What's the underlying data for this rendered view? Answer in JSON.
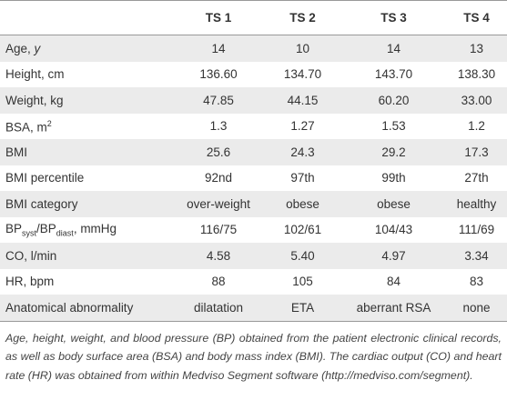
{
  "table": {
    "header": [
      "TS 1",
      "TS 2",
      "TS 3",
      "TS 4"
    ],
    "rows": [
      {
        "label": [
          {
            "text": "Age, "
          },
          {
            "text": "y",
            "style": "italic"
          }
        ],
        "cells": [
          "14",
          "10",
          "14",
          "13"
        ]
      },
      {
        "label": [
          {
            "text": "Height, cm"
          }
        ],
        "cells": [
          "136.60",
          "134.70",
          "143.70",
          "138.30"
        ]
      },
      {
        "label": [
          {
            "text": "Weight, kg"
          }
        ],
        "cells": [
          "47.85",
          "44.15",
          "60.20",
          "33.00"
        ]
      },
      {
        "label": [
          {
            "text": "BSA, m"
          },
          {
            "text": "2",
            "style": "sup"
          }
        ],
        "cells": [
          "1.3",
          "1.27",
          "1.53",
          "1.2"
        ]
      },
      {
        "label": [
          {
            "text": "BMI"
          }
        ],
        "cells": [
          "25.6",
          "24.3",
          "29.2",
          "17.3"
        ]
      },
      {
        "label": [
          {
            "text": "BMI percentile"
          }
        ],
        "cells": [
          "92nd",
          "97th",
          "99th",
          "27th"
        ]
      },
      {
        "label": [
          {
            "text": "BMI category"
          }
        ],
        "cells": [
          "over-weight",
          "obese",
          "obese",
          "healthy"
        ]
      },
      {
        "label": [
          {
            "text": "BP"
          },
          {
            "text": "syst",
            "style": "sub"
          },
          {
            "text": "/BP"
          },
          {
            "text": "diast",
            "style": "sub"
          },
          {
            "text": ", mmHg"
          }
        ],
        "cells": [
          "116/75",
          "102/61",
          "104/43",
          "111/69"
        ]
      },
      {
        "label": [
          {
            "text": "CO, l/min"
          }
        ],
        "cells": [
          "4.58",
          "5.40",
          "4.97",
          "3.34"
        ]
      },
      {
        "label": [
          {
            "text": "HR, bpm"
          }
        ],
        "cells": [
          "88",
          "105",
          "84",
          "83"
        ]
      },
      {
        "label": [
          {
            "text": "Anatomical abnormality"
          }
        ],
        "cells": [
          "dilatation",
          "ETA",
          "aberrant RSA",
          "none"
        ]
      }
    ],
    "caption": "Age, height, weight, and blood pressure (BP) obtained from the patient electronic clinical records, as well as body surface area (BSA) and body mass index (BMI). The cardiac output (CO) and heart rate (HR) was obtained from within Medviso Segment software (http://medviso.com/segment)."
  }
}
